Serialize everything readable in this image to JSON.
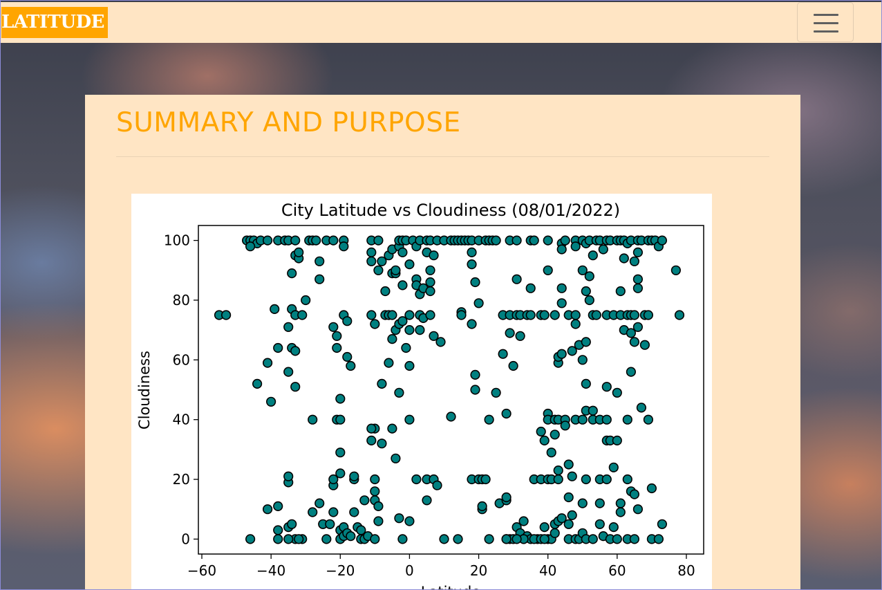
{
  "navbar": {
    "brand": "LATITUDE",
    "toggle_icon": "hamburger-menu-icon"
  },
  "main": {
    "heading": "SUMMARY AND PURPOSE"
  },
  "colors": {
    "accent": "#ffa500",
    "panel_bg": "#ffe5c4",
    "marker_fill": "#008080",
    "marker_edge": "#000000"
  },
  "chart_data": {
    "type": "scatter",
    "title": "City Latitude vs Cloudiness (08/01/2022)",
    "xlabel": "Latitude",
    "ylabel": "Cloudiness",
    "xlim": [
      -61,
      85
    ],
    "ylim": [
      -5,
      105
    ],
    "xticks": [
      -60,
      -40,
      -20,
      0,
      20,
      40,
      60,
      80
    ],
    "yticks": [
      0,
      20,
      40,
      60,
      80,
      100
    ],
    "xtick_labels": [
      "−60",
      "−40",
      "−20",
      "0",
      "20",
      "40",
      "60",
      "80"
    ],
    "ytick_labels": [
      "0",
      "20",
      "40",
      "60",
      "80",
      "100"
    ],
    "grid": false,
    "points": [
      [
        -55,
        75
      ],
      [
        -53,
        75
      ],
      [
        -47,
        100
      ],
      [
        -46,
        100
      ],
      [
        -45,
        100
      ],
      [
        -44,
        99
      ],
      [
        -43,
        100
      ],
      [
        -41,
        100
      ],
      [
        -46,
        0
      ],
      [
        -46,
        98
      ],
      [
        -44,
        52
      ],
      [
        -41,
        59
      ],
      [
        -40,
        46
      ],
      [
        -39,
        77
      ],
      [
        -41,
        10
      ],
      [
        -38,
        11
      ],
      [
        -38,
        3
      ],
      [
        -38,
        0
      ],
      [
        -38,
        64
      ],
      [
        -38,
        100
      ],
      [
        -36,
        100
      ],
      [
        -35,
        100
      ],
      [
        -35,
        71
      ],
      [
        -35,
        56
      ],
      [
        -35,
        19
      ],
      [
        -35,
        21
      ],
      [
        -35,
        4
      ],
      [
        -34,
        5
      ],
      [
        -34,
        64
      ],
      [
        -34,
        77
      ],
      [
        -34,
        89
      ],
      [
        -33,
        95
      ],
      [
        -33,
        75
      ],
      [
        -33,
        51
      ],
      [
        -33,
        63
      ],
      [
        -33,
        100
      ],
      [
        -32,
        94
      ],
      [
        -32,
        96
      ],
      [
        -31,
        75
      ],
      [
        -30,
        80
      ],
      [
        -31,
        0
      ],
      [
        -33,
        0
      ],
      [
        -35,
        0
      ],
      [
        -32,
        0
      ],
      [
        -29,
        100
      ],
      [
        -28,
        100
      ],
      [
        -27,
        100
      ],
      [
        -28,
        40
      ],
      [
        -28,
        9
      ],
      [
        -26,
        87
      ],
      [
        -26,
        93
      ],
      [
        -26,
        12
      ],
      [
        -25,
        5
      ],
      [
        -24,
        100
      ],
      [
        -24,
        0
      ],
      [
        -23,
        5
      ],
      [
        -22,
        100
      ],
      [
        -22,
        71
      ],
      [
        -22,
        18
      ],
      [
        -22,
        20
      ],
      [
        -22,
        9
      ],
      [
        -21,
        68
      ],
      [
        -21,
        64
      ],
      [
        -21,
        40
      ],
      [
        -20,
        40
      ],
      [
        -20,
        29
      ],
      [
        -20,
        47
      ],
      [
        -20,
        22
      ],
      [
        -20,
        3
      ],
      [
        -19,
        4
      ],
      [
        -20,
        0
      ],
      [
        -19,
        1
      ],
      [
        -19,
        100
      ],
      [
        -19,
        98
      ],
      [
        -19,
        75
      ],
      [
        -18,
        73
      ],
      [
        -18,
        61
      ],
      [
        -17,
        58
      ],
      [
        -18,
        2
      ],
      [
        -17,
        1
      ],
      [
        -16,
        20
      ],
      [
        -16,
        21
      ],
      [
        -16,
        9
      ],
      [
        -15,
        4
      ],
      [
        -14,
        3
      ],
      [
        -14,
        0
      ],
      [
        -13,
        13
      ],
      [
        -13,
        0
      ],
      [
        -12,
        1
      ],
      [
        -11,
        75
      ],
      [
        -11,
        100
      ],
      [
        -11,
        96
      ],
      [
        -11,
        93
      ],
      [
        -11,
        33
      ],
      [
        -10,
        37
      ],
      [
        -11,
        37
      ],
      [
        -10,
        13
      ],
      [
        -10,
        16
      ],
      [
        -9,
        11
      ],
      [
        -10,
        72
      ],
      [
        -10,
        20
      ],
      [
        -9,
        6
      ],
      [
        -10,
        0
      ],
      [
        -9,
        90
      ],
      [
        -9,
        100
      ],
      [
        -8,
        52
      ],
      [
        -8,
        32
      ],
      [
        -8,
        93
      ],
      [
        -7,
        83
      ],
      [
        -7,
        75
      ],
      [
        -6,
        59
      ],
      [
        -6,
        75
      ],
      [
        -6,
        95
      ],
      [
        -5,
        97
      ],
      [
        -5,
        89
      ],
      [
        -5,
        75
      ],
      [
        -5,
        67
      ],
      [
        -5,
        37
      ],
      [
        -4,
        27
      ],
      [
        -4,
        70
      ],
      [
        -4,
        89
      ],
      [
        -4,
        90
      ],
      [
        -3,
        98
      ],
      [
        -3,
        100
      ],
      [
        -3,
        72
      ],
      [
        -3,
        49
      ],
      [
        -3,
        7
      ],
      [
        -2,
        100
      ],
      [
        -2,
        96
      ],
      [
        -2,
        73
      ],
      [
        -2,
        85
      ],
      [
        -2,
        0
      ],
      [
        -1,
        64
      ],
      [
        -1,
        100
      ],
      [
        0,
        75
      ],
      [
        0,
        92
      ],
      [
        0,
        70
      ],
      [
        0,
        58
      ],
      [
        0,
        40
      ],
      [
        0,
        6
      ],
      [
        1,
        100
      ],
      [
        2,
        87
      ],
      [
        2,
        85
      ],
      [
        2,
        20
      ],
      [
        2,
        98
      ],
      [
        3,
        100
      ],
      [
        3,
        82
      ],
      [
        3,
        75
      ],
      [
        3,
        70
      ],
      [
        4,
        84
      ],
      [
        4,
        74
      ],
      [
        5,
        100
      ],
      [
        5,
        96
      ],
      [
        5,
        20
      ],
      [
        5,
        13
      ],
      [
        6,
        100
      ],
      [
        6,
        90
      ],
      [
        6,
        86
      ],
      [
        6,
        83
      ],
      [
        6,
        75
      ],
      [
        7,
        95
      ],
      [
        7,
        68
      ],
      [
        7,
        20
      ],
      [
        8,
        100
      ],
      [
        8,
        18
      ],
      [
        9,
        66
      ],
      [
        10,
        100
      ],
      [
        10,
        0
      ],
      [
        12,
        100
      ],
      [
        12,
        41
      ],
      [
        13,
        100
      ],
      [
        14,
        100
      ],
      [
        14,
        0
      ],
      [
        15,
        100
      ],
      [
        15,
        76
      ],
      [
        15,
        75
      ],
      [
        16,
        100
      ],
      [
        17,
        100
      ],
      [
        18,
        92
      ],
      [
        18,
        96
      ],
      [
        18,
        72
      ],
      [
        18,
        100
      ],
      [
        18,
        20
      ],
      [
        19,
        86
      ],
      [
        19,
        55
      ],
      [
        19,
        50
      ],
      [
        20,
        79
      ],
      [
        20,
        100
      ],
      [
        20,
        20
      ],
      [
        21,
        20
      ],
      [
        21,
        10
      ],
      [
        21,
        11
      ],
      [
        22,
        20
      ],
      [
        22,
        100
      ],
      [
        23,
        100
      ],
      [
        23,
        40
      ],
      [
        23,
        0
      ],
      [
        24,
        100
      ],
      [
        25,
        49
      ],
      [
        25,
        100
      ],
      [
        26,
        12
      ],
      [
        27,
        75
      ],
      [
        27,
        62
      ],
      [
        28,
        13
      ],
      [
        28,
        14
      ],
      [
        28,
        42
      ],
      [
        28,
        0
      ],
      [
        29,
        69
      ],
      [
        29,
        100
      ],
      [
        29,
        75
      ],
      [
        29,
        0
      ],
      [
        30,
        58
      ],
      [
        30,
        0
      ],
      [
        31,
        100
      ],
      [
        31,
        87
      ],
      [
        31,
        75
      ],
      [
        31,
        4
      ],
      [
        32,
        68
      ],
      [
        32,
        75
      ],
      [
        32,
        2
      ],
      [
        33,
        6
      ],
      [
        33,
        0
      ],
      [
        34,
        75
      ],
      [
        34,
        1
      ],
      [
        35,
        100
      ],
      [
        35,
        84
      ],
      [
        35,
        75
      ],
      [
        35,
        0
      ],
      [
        36,
        100
      ],
      [
        36,
        20
      ],
      [
        37,
        0
      ],
      [
        38,
        75
      ],
      [
        38,
        36
      ],
      [
        38,
        20
      ],
      [
        39,
        75
      ],
      [
        39,
        33
      ],
      [
        39,
        4
      ],
      [
        40,
        42
      ],
      [
        40,
        40
      ],
      [
        40,
        20
      ],
      [
        40,
        0
      ],
      [
        40,
        100
      ],
      [
        40,
        90
      ],
      [
        41,
        29
      ],
      [
        41,
        20
      ],
      [
        41,
        0
      ],
      [
        42,
        75
      ],
      [
        42,
        35
      ],
      [
        42,
        40
      ],
      [
        42,
        5
      ],
      [
        43,
        59
      ],
      [
        43,
        61
      ],
      [
        43,
        40
      ],
      [
        43,
        23
      ],
      [
        43,
        20
      ],
      [
        43,
        6
      ],
      [
        44,
        99
      ],
      [
        44,
        97
      ],
      [
        44,
        84
      ],
      [
        44,
        79
      ],
      [
        44,
        62
      ],
      [
        44,
        7
      ],
      [
        45,
        100
      ],
      [
        45,
        40
      ],
      [
        45,
        38
      ],
      [
        46,
        75
      ],
      [
        46,
        25
      ],
      [
        46,
        14
      ],
      [
        46,
        5
      ],
      [
        46,
        0
      ],
      [
        47,
        63
      ],
      [
        47,
        21
      ],
      [
        47,
        8
      ],
      [
        48,
        100
      ],
      [
        48,
        98
      ],
      [
        48,
        72
      ],
      [
        48,
        75
      ],
      [
        48,
        40
      ],
      [
        48,
        0
      ],
      [
        49,
        65
      ],
      [
        49,
        0
      ],
      [
        50,
        100
      ],
      [
        50,
        90
      ],
      [
        50,
        60
      ],
      [
        50,
        40
      ],
      [
        50,
        12
      ],
      [
        50,
        2
      ],
      [
        51,
        99
      ],
      [
        51,
        83
      ],
      [
        51,
        66
      ],
      [
        51,
        52
      ],
      [
        51,
        43
      ],
      [
        51,
        20
      ],
      [
        51,
        0
      ],
      [
        52,
        100
      ],
      [
        52,
        80
      ],
      [
        52,
        88
      ],
      [
        53,
        95
      ],
      [
        53,
        75
      ],
      [
        53,
        43
      ],
      [
        53,
        40
      ],
      [
        53,
        0
      ],
      [
        54,
        100
      ],
      [
        54,
        75
      ],
      [
        55,
        100
      ],
      [
        55,
        40
      ],
      [
        55,
        12
      ],
      [
        55,
        20
      ],
      [
        55,
        5
      ],
      [
        56,
        97
      ],
      [
        56,
        1
      ],
      [
        57,
        100
      ],
      [
        57,
        75
      ],
      [
        57,
        51
      ],
      [
        57,
        40
      ],
      [
        57,
        33
      ],
      [
        57,
        20
      ],
      [
        58,
        100
      ],
      [
        58,
        33
      ],
      [
        58,
        0
      ],
      [
        59,
        75
      ],
      [
        59,
        24
      ],
      [
        59,
        4
      ],
      [
        60,
        100
      ],
      [
        60,
        49
      ],
      [
        60,
        33
      ],
      [
        60,
        0
      ],
      [
        61,
        100
      ],
      [
        61,
        83
      ],
      [
        61,
        75
      ],
      [
        61,
        12
      ],
      [
        61,
        9
      ],
      [
        62,
        100
      ],
      [
        62,
        94
      ],
      [
        62,
        70
      ],
      [
        63,
        99
      ],
      [
        63,
        75
      ],
      [
        63,
        40
      ],
      [
        63,
        20
      ],
      [
        63,
        0
      ],
      [
        64,
        100
      ],
      [
        64,
        75
      ],
      [
        64,
        56
      ],
      [
        64,
        69
      ],
      [
        64,
        16
      ],
      [
        65,
        93
      ],
      [
        65,
        75
      ],
      [
        65,
        66
      ],
      [
        65,
        15
      ],
      [
        65,
        0
      ],
      [
        66,
        100
      ],
      [
        66,
        96
      ],
      [
        66,
        87
      ],
      [
        66,
        84
      ],
      [
        66,
        71
      ],
      [
        66,
        10
      ],
      [
        67,
        100
      ],
      [
        67,
        44
      ],
      [
        68,
        75
      ],
      [
        68,
        65
      ],
      [
        69,
        100
      ],
      [
        69,
        75
      ],
      [
        69,
        40
      ],
      [
        70,
        100
      ],
      [
        70,
        17
      ],
      [
        70,
        0
      ],
      [
        71,
        100
      ],
      [
        72,
        98
      ],
      [
        72,
        0
      ],
      [
        73,
        100
      ],
      [
        73,
        5
      ],
      [
        77,
        90
      ],
      [
        78,
        75
      ],
      [
        42,
        2
      ],
      [
        36,
        0
      ],
      [
        38,
        0
      ],
      [
        39,
        0
      ],
      [
        33,
        0
      ],
      [
        31,
        0
      ],
      [
        28,
        0
      ]
    ]
  }
}
